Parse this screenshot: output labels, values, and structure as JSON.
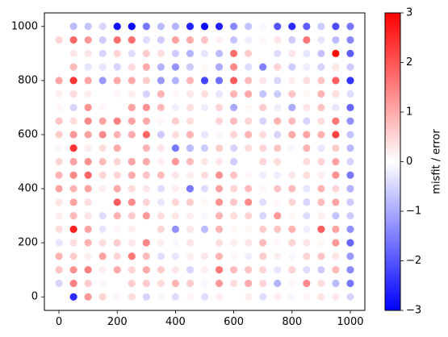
{
  "chart_data": {
    "type": "scatter",
    "title": "",
    "xlabel": "",
    "ylabel": "",
    "xlim": [
      -50,
      1050
    ],
    "ylim": [
      -50,
      1050
    ],
    "x_ticks": [
      0,
      200,
      400,
      600,
      800,
      1000
    ],
    "y_ticks": [
      0,
      200,
      400,
      600,
      800,
      1000
    ],
    "grid": false,
    "colormap": "bwr",
    "colorbar": {
      "label": "misfit / error",
      "range": [
        -3,
        3
      ],
      "ticks": [
        -3,
        -2,
        -1,
        0,
        1,
        2,
        3
      ],
      "low_color": "#0000ff",
      "mid_color": "#ffffff",
      "high_color": "#ff0000"
    },
    "x": [
      0,
      50,
      100,
      150,
      200,
      250,
      300,
      350,
      400,
      450,
      500,
      550,
      600,
      650,
      700,
      750,
      800,
      850,
      900,
      950,
      1000
    ],
    "y": [
      1000,
      950,
      900,
      850,
      800,
      750,
      700,
      650,
      600,
      550,
      500,
      450,
      400,
      350,
      300,
      250,
      200,
      150,
      100,
      50,
      0
    ],
    "values": [
      [
        0.0,
        -0.8,
        -0.7,
        -0.5,
        -2.8,
        -2.9,
        -1.6,
        -0.8,
        -0.9,
        -2.6,
        -2.9,
        -2.6,
        -1.4,
        -0.7,
        -0.1,
        -2.0,
        -2.5,
        -1.9,
        -0.6,
        -2.1,
        -1.6
      ],
      [
        0.5,
        1.8,
        1.2,
        -0.6,
        1.7,
        1.7,
        -0.4,
        -0.6,
        1.1,
        1.0,
        0.7,
        0.2,
        -0.7,
        -0.2,
        0.1,
        0.3,
        -0.6,
        1.6,
        -0.3,
        -0.8,
        -1.4
      ],
      [
        0.0,
        0.3,
        0.3,
        -0.5,
        0.5,
        -0.4,
        0.6,
        0.4,
        -0.6,
        -0.9,
        -0.3,
        -0.8,
        1.7,
        0.6,
        0.0,
        -0.4,
        0.3,
        -0.3,
        -0.7,
        2.9,
        -1.9
      ],
      [
        0.0,
        0.8,
        -0.3,
        -0.3,
        -0.5,
        0.4,
        1.0,
        -0.9,
        -1.3,
        -0.6,
        0.1,
        -1.0,
        1.4,
        -0.4,
        -1.5,
        0.5,
        -0.6,
        -0.2,
        -0.5,
        0.3,
        -0.6
      ],
      [
        1.1,
        2.4,
        1.1,
        -1.2,
        1.0,
        1.0,
        0.6,
        -1.2,
        -0.9,
        0.9,
        -2.2,
        -1.7,
        1.9,
        0.8,
        0.3,
        -0.5,
        0.2,
        0.4,
        0.7,
        1.9,
        -2.4
      ],
      [
        0.2,
        0.4,
        0.2,
        0.0,
        0.1,
        0.2,
        -0.5,
        0.9,
        0.1,
        0.3,
        0.4,
        -0.3,
        0.9,
        1.0,
        -0.7,
        -0.6,
        0.7,
        0.1,
        0.9,
        0.4,
        -0.4
      ],
      [
        0.1,
        -0.5,
        1.3,
        0.1,
        0.0,
        1.1,
        1.3,
        0.8,
        -0.2,
        0.4,
        -0.2,
        0.5,
        -1.0,
        0.1,
        0.6,
        -0.2,
        -1.0,
        0.3,
        0.7,
        -0.3,
        -1.8
      ],
      [
        0.7,
        0.4,
        1.4,
        1.1,
        1.5,
        1.1,
        1.0,
        0.1,
        0.6,
        0.4,
        0.0,
        0.5,
        0.8,
        0.5,
        -0.5,
        0.9,
        0.8,
        -0.5,
        0.4,
        1.6,
        -1.3
      ],
      [
        0.6,
        1.2,
        1.1,
        1.4,
        0.9,
        1.0,
        1.8,
        -0.6,
        0.4,
        0.9,
        -0.3,
        0.1,
        0.5,
        0.9,
        0.4,
        -0.5,
        1.0,
        1.1,
        0.9,
        2.2,
        -0.7
      ],
      [
        0.1,
        2.4,
        0.2,
        0.4,
        1.0,
        0.0,
        0.9,
        0.3,
        -1.6,
        -0.8,
        -0.6,
        0.6,
        -0.5,
        0.4,
        0.5,
        0.7,
        -0.1,
        0.9,
        -0.3,
        0.6,
        -0.8
      ],
      [
        0.5,
        1.1,
        1.3,
        0.8,
        0.5,
        1.1,
        1.0,
        0.2,
        1.2,
        0.8,
        0.3,
        0.3,
        -0.6,
        0.0,
        0.5,
        0.4,
        0.0,
        0.4,
        0.5,
        1.1,
        -0.5
      ],
      [
        0.9,
        1.4,
        1.8,
        0.5,
        0.5,
        1.0,
        0.7,
        0.8,
        0.3,
        0.2,
        0.4,
        1.3,
        0.7,
        0.1,
        -0.2,
        -0.2,
        0.3,
        0.4,
        0.2,
        1.3,
        -1.6
      ],
      [
        1.1,
        0.9,
        1.1,
        0.2,
        1.0,
        0.4,
        0.3,
        -0.4,
        0.2,
        -1.6,
        -0.4,
        1.1,
        0.5,
        0.8,
        0.1,
        0.7,
        0.8,
        -0.3,
        0.9,
        0.5,
        -0.9
      ],
      [
        0.3,
        1.1,
        0.4,
        0.0,
        1.9,
        1.4,
        0.5,
        -0.3,
        0.5,
        0.6,
        0.1,
        1.3,
        0.7,
        1.4,
        -0.4,
        0.1,
        0.5,
        -0.5,
        0.8,
        1.1,
        -0.6
      ],
      [
        0.2,
        0.8,
        0.3,
        -0.4,
        0.9,
        0.6,
        1.2,
        0.4,
        0.3,
        0.2,
        -0.1,
        0.9,
        0.4,
        0.5,
        -0.5,
        1.2,
        0.1,
        -0.4,
        0.2,
        -0.7,
        -0.6
      ],
      [
        0.4,
        2.6,
        1.1,
        -0.3,
        0.1,
        0.2,
        0.0,
        0.5,
        -1.3,
        0.3,
        -0.8,
        0.9,
        0.1,
        0.1,
        0.6,
        0.7,
        0.9,
        -0.2,
        1.9,
        1.1,
        -1.3
      ],
      [
        -0.3,
        0.4,
        0.9,
        0.4,
        0.6,
        0.3,
        1.4,
        0.2,
        -0.1,
        0.3,
        0.0,
        0.4,
        0.2,
        0.3,
        0.8,
        0.1,
        0.5,
        0.3,
        0.1,
        1.2,
        -1.8
      ],
      [
        0.9,
        0.6,
        0.2,
        1.1,
        0.5,
        1.6,
        0.8,
        -0.4,
        -0.3,
        0.2,
        0.3,
        0.9,
        0.1,
        -0.2,
        0.6,
        0.2,
        -0.1,
        0.5,
        0.7,
        0.3,
        -1.2
      ],
      [
        0.7,
        1.3,
        1.5,
        0.2,
        1.0,
        0.5,
        1.0,
        0.6,
        0.3,
        -0.5,
        0.2,
        1.6,
        0.8,
        0.7,
        0.5,
        -0.3,
        0.5,
        -0.4,
        -0.6,
        0.8,
        -1.4
      ],
      [
        -0.5,
        1.5,
        0.6,
        0.1,
        0.0,
        0.6,
        0.6,
        0.4,
        0.9,
        0.6,
        -0.1,
        1.2,
        0.4,
        1.0,
        0.5,
        -0.9,
        0.1,
        1.4,
        0.4,
        -0.8,
        -1.6
      ],
      [
        0.0,
        -2.5,
        1.2,
        0.5,
        0.1,
        0.4,
        -0.5,
        -0.1,
        -0.4,
        0.1,
        -0.4,
        0.2,
        0.0,
        0.2,
        -0.4,
        0.2,
        -0.1,
        0.1,
        0.3,
        0.3,
        -0.5
      ]
    ]
  }
}
